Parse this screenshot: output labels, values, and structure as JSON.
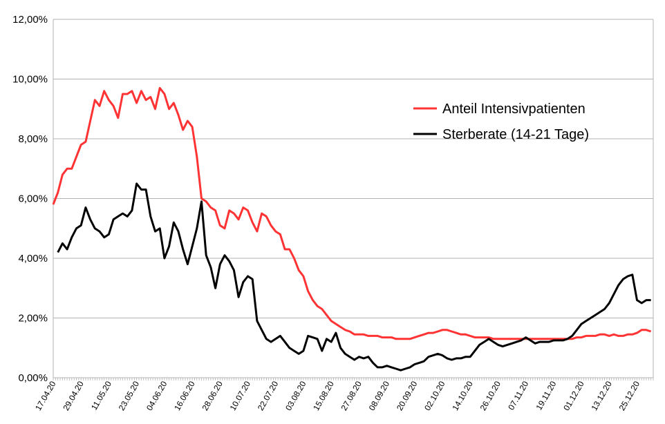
{
  "chart_data": {
    "type": "line",
    "title": "",
    "xlabel": "",
    "ylabel": "",
    "ylim": [
      0,
      0.12
    ],
    "y_ticks": [
      "0,00%",
      "2,00%",
      "4,00%",
      "6,00%",
      "8,00%",
      "10,00%",
      "12,00%"
    ],
    "x_tick_labels": [
      "17.04.20",
      "29.04.20",
      "11.05.20",
      "23.05.20",
      "04.06.20",
      "16.06.20",
      "28.06.20",
      "10.07.20",
      "22.07.20",
      "03.08.20",
      "15.08.20",
      "27.08.20",
      "08.09.20",
      "20.09.20",
      "02.10.20",
      "14.10.20",
      "26.10.20",
      "07.11.20",
      "19.11.20",
      "01.12.20",
      "13.12.20",
      "25.12.20"
    ],
    "grid": "horizontal",
    "legend_position": "right",
    "x_start": "2020-04-17",
    "x_end": "2021-01-01",
    "series": [
      {
        "name": "Anteil Intensivpatienten",
        "color": "#ff3333",
        "points": [
          [
            "2020-04-17",
            5.8
          ],
          [
            "2020-04-19",
            6.2
          ],
          [
            "2020-04-21",
            6.8
          ],
          [
            "2020-04-23",
            7.0
          ],
          [
            "2020-04-25",
            7.0
          ],
          [
            "2020-04-27",
            7.4
          ],
          [
            "2020-04-29",
            7.8
          ],
          [
            "2020-05-01",
            7.9
          ],
          [
            "2020-05-03",
            8.6
          ],
          [
            "2020-05-05",
            9.3
          ],
          [
            "2020-05-07",
            9.1
          ],
          [
            "2020-05-09",
            9.6
          ],
          [
            "2020-05-11",
            9.3
          ],
          [
            "2020-05-13",
            9.1
          ],
          [
            "2020-05-15",
            8.7
          ],
          [
            "2020-05-17",
            9.5
          ],
          [
            "2020-05-19",
            9.5
          ],
          [
            "2020-05-21",
            9.6
          ],
          [
            "2020-05-23",
            9.2
          ],
          [
            "2020-05-25",
            9.6
          ],
          [
            "2020-05-27",
            9.3
          ],
          [
            "2020-05-29",
            9.4
          ],
          [
            "2020-05-31",
            9.0
          ],
          [
            "2020-06-02",
            9.7
          ],
          [
            "2020-06-04",
            9.5
          ],
          [
            "2020-06-06",
            9.0
          ],
          [
            "2020-06-08",
            9.2
          ],
          [
            "2020-06-10",
            8.8
          ],
          [
            "2020-06-12",
            8.3
          ],
          [
            "2020-06-14",
            8.6
          ],
          [
            "2020-06-16",
            8.4
          ],
          [
            "2020-06-18",
            7.4
          ],
          [
            "2020-06-20",
            6.0
          ],
          [
            "2020-06-22",
            5.9
          ],
          [
            "2020-06-24",
            5.7
          ],
          [
            "2020-06-26",
            5.6
          ],
          [
            "2020-06-28",
            5.1
          ],
          [
            "2020-06-30",
            5.0
          ],
          [
            "2020-07-02",
            5.6
          ],
          [
            "2020-07-04",
            5.5
          ],
          [
            "2020-07-06",
            5.3
          ],
          [
            "2020-07-08",
            5.7
          ],
          [
            "2020-07-10",
            5.6
          ],
          [
            "2020-07-12",
            5.2
          ],
          [
            "2020-07-14",
            4.9
          ],
          [
            "2020-07-16",
            5.5
          ],
          [
            "2020-07-18",
            5.4
          ],
          [
            "2020-07-20",
            5.1
          ],
          [
            "2020-07-22",
            4.9
          ],
          [
            "2020-07-24",
            4.8
          ],
          [
            "2020-07-26",
            4.3
          ],
          [
            "2020-07-28",
            4.3
          ],
          [
            "2020-07-30",
            4.0
          ],
          [
            "2020-08-01",
            3.6
          ],
          [
            "2020-08-03",
            3.4
          ],
          [
            "2020-08-05",
            2.9
          ],
          [
            "2020-08-07",
            2.6
          ],
          [
            "2020-08-09",
            2.4
          ],
          [
            "2020-08-11",
            2.3
          ],
          [
            "2020-08-13",
            2.1
          ],
          [
            "2020-08-15",
            1.9
          ],
          [
            "2020-08-17",
            1.8
          ],
          [
            "2020-08-19",
            1.7
          ],
          [
            "2020-08-21",
            1.6
          ],
          [
            "2020-08-23",
            1.55
          ],
          [
            "2020-08-25",
            1.45
          ],
          [
            "2020-08-27",
            1.45
          ],
          [
            "2020-08-29",
            1.45
          ],
          [
            "2020-08-31",
            1.4
          ],
          [
            "2020-09-02",
            1.4
          ],
          [
            "2020-09-04",
            1.4
          ],
          [
            "2020-09-06",
            1.35
          ],
          [
            "2020-09-08",
            1.35
          ],
          [
            "2020-09-10",
            1.35
          ],
          [
            "2020-09-12",
            1.3
          ],
          [
            "2020-09-14",
            1.3
          ],
          [
            "2020-09-16",
            1.3
          ],
          [
            "2020-09-18",
            1.3
          ],
          [
            "2020-09-20",
            1.35
          ],
          [
            "2020-09-22",
            1.4
          ],
          [
            "2020-09-24",
            1.45
          ],
          [
            "2020-09-26",
            1.5
          ],
          [
            "2020-09-28",
            1.5
          ],
          [
            "2020-09-30",
            1.55
          ],
          [
            "2020-10-02",
            1.6
          ],
          [
            "2020-10-04",
            1.6
          ],
          [
            "2020-10-06",
            1.55
          ],
          [
            "2020-10-08",
            1.5
          ],
          [
            "2020-10-10",
            1.45
          ],
          [
            "2020-10-12",
            1.45
          ],
          [
            "2020-10-14",
            1.4
          ],
          [
            "2020-10-16",
            1.35
          ],
          [
            "2020-10-18",
            1.35
          ],
          [
            "2020-10-20",
            1.35
          ],
          [
            "2020-10-22",
            1.35
          ],
          [
            "2020-10-24",
            1.3
          ],
          [
            "2020-10-26",
            1.3
          ],
          [
            "2020-10-28",
            1.3
          ],
          [
            "2020-10-30",
            1.3
          ],
          [
            "2020-11-01",
            1.3
          ],
          [
            "2020-11-03",
            1.3
          ],
          [
            "2020-11-05",
            1.3
          ],
          [
            "2020-11-07",
            1.3
          ],
          [
            "2020-11-09",
            1.3
          ],
          [
            "2020-11-11",
            1.3
          ],
          [
            "2020-11-13",
            1.3
          ],
          [
            "2020-11-15",
            1.3
          ],
          [
            "2020-11-17",
            1.3
          ],
          [
            "2020-11-19",
            1.3
          ],
          [
            "2020-11-21",
            1.3
          ],
          [
            "2020-11-23",
            1.3
          ],
          [
            "2020-11-25",
            1.3
          ],
          [
            "2020-11-27",
            1.3
          ],
          [
            "2020-11-29",
            1.35
          ],
          [
            "2020-12-01",
            1.35
          ],
          [
            "2020-12-03",
            1.4
          ],
          [
            "2020-12-05",
            1.4
          ],
          [
            "2020-12-07",
            1.4
          ],
          [
            "2020-12-09",
            1.45
          ],
          [
            "2020-12-11",
            1.45
          ],
          [
            "2020-12-13",
            1.4
          ],
          [
            "2020-12-15",
            1.45
          ],
          [
            "2020-12-17",
            1.4
          ],
          [
            "2020-12-19",
            1.4
          ],
          [
            "2020-12-21",
            1.45
          ],
          [
            "2020-12-23",
            1.45
          ],
          [
            "2020-12-25",
            1.5
          ],
          [
            "2020-12-27",
            1.6
          ],
          [
            "2020-12-29",
            1.6
          ],
          [
            "2020-12-31",
            1.55
          ]
        ]
      },
      {
        "name": "Sterberate (14-21 Tage)",
        "color": "#000000",
        "points": [
          [
            "2020-04-19",
            4.2
          ],
          [
            "2020-04-21",
            4.5
          ],
          [
            "2020-04-23",
            4.3
          ],
          [
            "2020-04-25",
            4.7
          ],
          [
            "2020-04-27",
            5.0
          ],
          [
            "2020-04-29",
            5.1
          ],
          [
            "2020-05-01",
            5.7
          ],
          [
            "2020-05-03",
            5.3
          ],
          [
            "2020-05-05",
            5.0
          ],
          [
            "2020-05-07",
            4.9
          ],
          [
            "2020-05-09",
            4.7
          ],
          [
            "2020-05-11",
            4.8
          ],
          [
            "2020-05-13",
            5.3
          ],
          [
            "2020-05-15",
            5.4
          ],
          [
            "2020-05-17",
            5.5
          ],
          [
            "2020-05-19",
            5.4
          ],
          [
            "2020-05-21",
            5.6
          ],
          [
            "2020-05-23",
            6.5
          ],
          [
            "2020-05-25",
            6.3
          ],
          [
            "2020-05-27",
            6.3
          ],
          [
            "2020-05-29",
            5.4
          ],
          [
            "2020-05-31",
            4.9
          ],
          [
            "2020-06-02",
            5.0
          ],
          [
            "2020-06-04",
            4.0
          ],
          [
            "2020-06-06",
            4.4
          ],
          [
            "2020-06-08",
            5.2
          ],
          [
            "2020-06-10",
            4.9
          ],
          [
            "2020-06-12",
            4.3
          ],
          [
            "2020-06-14",
            3.8
          ],
          [
            "2020-06-16",
            4.4
          ],
          [
            "2020-06-18",
            5.0
          ],
          [
            "2020-06-20",
            5.9
          ],
          [
            "2020-06-22",
            4.1
          ],
          [
            "2020-06-24",
            3.7
          ],
          [
            "2020-06-26",
            3.0
          ],
          [
            "2020-06-28",
            3.8
          ],
          [
            "2020-06-30",
            4.1
          ],
          [
            "2020-07-02",
            3.9
          ],
          [
            "2020-07-04",
            3.6
          ],
          [
            "2020-07-06",
            2.7
          ],
          [
            "2020-07-08",
            3.2
          ],
          [
            "2020-07-10",
            3.4
          ],
          [
            "2020-07-12",
            3.3
          ],
          [
            "2020-07-14",
            1.9
          ],
          [
            "2020-07-16",
            1.6
          ],
          [
            "2020-07-18",
            1.3
          ],
          [
            "2020-07-20",
            1.2
          ],
          [
            "2020-07-22",
            1.3
          ],
          [
            "2020-07-24",
            1.4
          ],
          [
            "2020-07-26",
            1.2
          ],
          [
            "2020-07-28",
            1.0
          ],
          [
            "2020-07-30",
            0.9
          ],
          [
            "2020-08-01",
            0.8
          ],
          [
            "2020-08-03",
            0.9
          ],
          [
            "2020-08-05",
            1.4
          ],
          [
            "2020-08-07",
            1.35
          ],
          [
            "2020-08-09",
            1.3
          ],
          [
            "2020-08-11",
            0.9
          ],
          [
            "2020-08-13",
            1.3
          ],
          [
            "2020-08-15",
            1.2
          ],
          [
            "2020-08-17",
            1.5
          ],
          [
            "2020-08-19",
            1.0
          ],
          [
            "2020-08-21",
            0.8
          ],
          [
            "2020-08-23",
            0.7
          ],
          [
            "2020-08-25",
            0.6
          ],
          [
            "2020-08-27",
            0.7
          ],
          [
            "2020-08-29",
            0.65
          ],
          [
            "2020-08-31",
            0.7
          ],
          [
            "2020-09-02",
            0.5
          ],
          [
            "2020-09-04",
            0.35
          ],
          [
            "2020-09-06",
            0.35
          ],
          [
            "2020-09-08",
            0.4
          ],
          [
            "2020-09-10",
            0.35
          ],
          [
            "2020-09-12",
            0.3
          ],
          [
            "2020-09-14",
            0.25
          ],
          [
            "2020-09-16",
            0.3
          ],
          [
            "2020-09-18",
            0.35
          ],
          [
            "2020-09-20",
            0.45
          ],
          [
            "2020-09-22",
            0.5
          ],
          [
            "2020-09-24",
            0.55
          ],
          [
            "2020-09-26",
            0.7
          ],
          [
            "2020-09-28",
            0.75
          ],
          [
            "2020-09-30",
            0.8
          ],
          [
            "2020-10-02",
            0.75
          ],
          [
            "2020-10-04",
            0.65
          ],
          [
            "2020-10-06",
            0.6
          ],
          [
            "2020-10-08",
            0.65
          ],
          [
            "2020-10-10",
            0.65
          ],
          [
            "2020-10-12",
            0.7
          ],
          [
            "2020-10-14",
            0.7
          ],
          [
            "2020-10-16",
            0.9
          ],
          [
            "2020-10-18",
            1.1
          ],
          [
            "2020-10-20",
            1.2
          ],
          [
            "2020-10-22",
            1.3
          ],
          [
            "2020-10-24",
            1.2
          ],
          [
            "2020-10-26",
            1.1
          ],
          [
            "2020-10-28",
            1.05
          ],
          [
            "2020-10-30",
            1.1
          ],
          [
            "2020-11-01",
            1.15
          ],
          [
            "2020-11-03",
            1.2
          ],
          [
            "2020-11-05",
            1.25
          ],
          [
            "2020-11-07",
            1.35
          ],
          [
            "2020-11-09",
            1.25
          ],
          [
            "2020-11-11",
            1.15
          ],
          [
            "2020-11-13",
            1.2
          ],
          [
            "2020-11-15",
            1.2
          ],
          [
            "2020-11-17",
            1.2
          ],
          [
            "2020-11-19",
            1.25
          ],
          [
            "2020-11-21",
            1.25
          ],
          [
            "2020-11-23",
            1.25
          ],
          [
            "2020-11-25",
            1.3
          ],
          [
            "2020-11-27",
            1.4
          ],
          [
            "2020-11-29",
            1.6
          ],
          [
            "2020-12-01",
            1.8
          ],
          [
            "2020-12-03",
            1.9
          ],
          [
            "2020-12-05",
            2.0
          ],
          [
            "2020-12-07",
            2.1
          ],
          [
            "2020-12-09",
            2.2
          ],
          [
            "2020-12-11",
            2.3
          ],
          [
            "2020-12-13",
            2.5
          ],
          [
            "2020-12-15",
            2.8
          ],
          [
            "2020-12-17",
            3.1
          ],
          [
            "2020-12-19",
            3.3
          ],
          [
            "2020-12-21",
            3.4
          ],
          [
            "2020-12-23",
            3.45
          ],
          [
            "2020-12-25",
            2.6
          ],
          [
            "2020-12-27",
            2.5
          ],
          [
            "2020-12-29",
            2.6
          ],
          [
            "2020-12-31",
            2.6
          ]
        ]
      }
    ]
  }
}
